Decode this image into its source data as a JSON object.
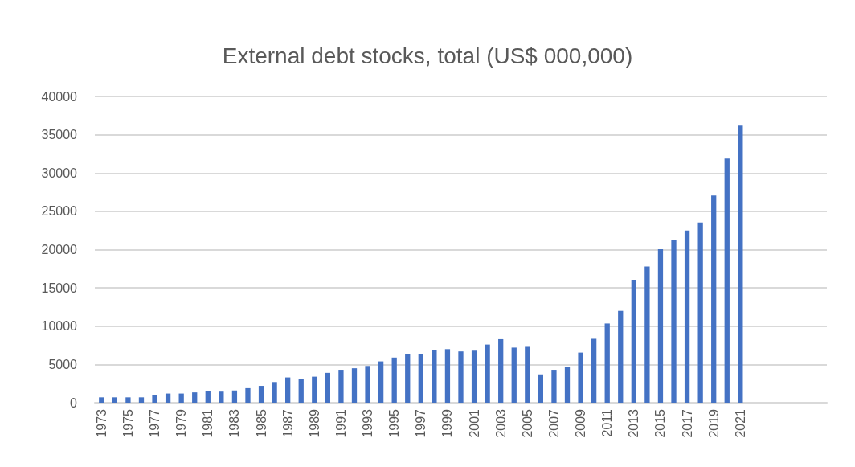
{
  "chart_data": {
    "type": "bar",
    "title": "External debt stocks, total (US$ 000,000)",
    "categories": [
      "1973",
      null,
      "1975",
      null,
      "1977",
      null,
      "1979",
      null,
      "1981",
      null,
      "1983",
      null,
      "1985",
      null,
      "1987",
      null,
      "1989",
      null,
      "1991",
      null,
      "1993",
      null,
      "1995",
      null,
      "1997",
      null,
      "1999",
      null,
      "2001",
      null,
      "2003",
      null,
      "2005",
      null,
      "2007",
      null,
      "2009",
      null,
      "2011",
      null,
      "2013",
      null,
      "2015",
      null,
      "2017",
      null,
      "2019",
      null,
      "2021",
      null,
      null,
      null,
      null,
      null,
      null
    ],
    "values": [
      700,
      700,
      700,
      700,
      1000,
      1200,
      1200,
      1350,
      1500,
      1450,
      1600,
      1900,
      2200,
      2700,
      3300,
      3100,
      3400,
      3900,
      4300,
      4500,
      4800,
      5400,
      5900,
      6400,
      6300,
      6900,
      7000,
      6700,
      6800,
      7600,
      8300,
      7200,
      7300,
      3700,
      4300,
      4700,
      6550,
      8350,
      10350,
      12000,
      16050,
      17800,
      20050,
      21300,
      22500,
      23550,
      27050,
      31900,
      36200,
      null,
      null,
      null,
      null,
      null,
      null
    ],
    "color": "#4472c4",
    "ylim": [
      0,
      40000
    ],
    "yticks": [
      0,
      5000,
      10000,
      15000,
      20000,
      25000,
      30000,
      35000,
      40000
    ],
    "grid": "y"
  }
}
